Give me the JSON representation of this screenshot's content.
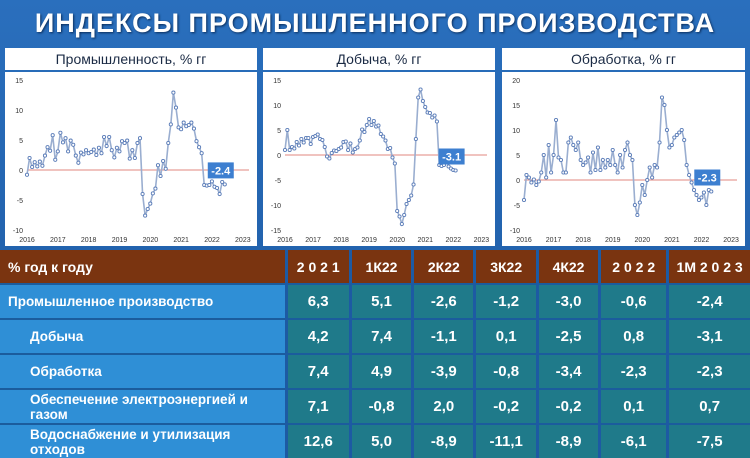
{
  "title": "ИНДЕКСЫ ПРОМЫШЛЕННОГО ПРОИЗВОДСТВА",
  "chart_data": [
    {
      "type": "line",
      "title": "Промышленность, % гг",
      "annotation": "-2.4",
      "ylim": [
        -10,
        15
      ],
      "yticks": [
        -10,
        -5,
        0,
        5,
        10,
        15
      ],
      "xticks": [
        "2016",
        "2017",
        "2018",
        "2019",
        "2020",
        "2021",
        "2022",
        "2023"
      ],
      "x_start": 2016.0,
      "x_step": 0.0833,
      "values": [
        -0.8,
        2.0,
        0.5,
        1.3,
        0.6,
        1.4,
        0.7,
        2.4,
        3.8,
        3.2,
        5.8,
        1.7,
        3.1,
        6.2,
        4.6,
        5.3,
        3.1,
        4.9,
        4.2,
        2.4,
        1.2,
        2.9,
        2.6,
        3.3,
        2.8,
        3.0,
        3.4,
        2.5,
        3.7,
        2.8,
        5.5,
        4.0,
        5.5,
        3.3,
        2.1,
        3.7,
        3.1,
        4.8,
        4.5,
        4.9,
        1.9,
        3.3,
        2.0,
        4.5,
        5.3,
        -4.0,
        -7.6,
        -6.5,
        -5.6,
        -3.9,
        -3.1,
        0.8,
        -1.0,
        1.5,
        0.2,
        4.5,
        7.6,
        12.9,
        10.4,
        7.1,
        6.8,
        7.9,
        7.3,
        7.5,
        7.9,
        6.9,
        4.8,
        3.8,
        2.8,
        -2.5,
        -2.6,
        -2.5,
        -1.9,
        -2.8,
        -3.0,
        -4.0,
        -2.0,
        -2.4
      ],
      "reference_line": 0
    },
    {
      "type": "line",
      "title": "Добыча, % гг",
      "annotation": "-3.1",
      "ylim": [
        -15,
        15
      ],
      "yticks": [
        -15,
        -10,
        -5,
        0,
        5,
        10,
        15
      ],
      "xticks": [
        "2016",
        "2017",
        "2018",
        "2019",
        "2020",
        "2021",
        "2022",
        "2023"
      ],
      "x_start": 2016.0,
      "x_step": 0.0833,
      "values": [
        1.0,
        5.0,
        1.0,
        1.6,
        1.3,
        2.6,
        1.9,
        3.2,
        2.5,
        3.4,
        3.4,
        2.2,
        3.6,
        3.8,
        4.1,
        3.2,
        3.0,
        1.6,
        -0.3,
        -0.7,
        0.4,
        0.9,
        0.8,
        1.2,
        1.5,
        2.6,
        2.7,
        1.0,
        2.3,
        0.5,
        1.2,
        1.5,
        2.9,
        5.1,
        4.6,
        6.0,
        7.2,
        6.0,
        6.8,
        5.7,
        5.9,
        4.2,
        3.7,
        2.9,
        1.2,
        1.4,
        -0.5,
        -1.7,
        -11.2,
        -12.3,
        -13.8,
        -12.0,
        -9.8,
        -9.0,
        -8.1,
        -5.9,
        3.2,
        11.5,
        13.1,
        10.8,
        9.6,
        8.5,
        8.4,
        7.5,
        7.9,
        6.7,
        -2.0,
        -2.2,
        -2.0,
        -0.7,
        -2.3,
        -2.7,
        -3.0,
        -3.1
      ],
      "reference_line": 0
    },
    {
      "type": "line",
      "title": "Обработка, % гг",
      "annotation": "-2.3",
      "ylim": [
        -10,
        20
      ],
      "yticks": [
        -10,
        -5,
        0,
        5,
        10,
        15,
        20
      ],
      "xticks": [
        "2016",
        "2017",
        "2018",
        "2019",
        "2020",
        "2021",
        "2022",
        "2023"
      ],
      "x_start": 2016.0,
      "x_step": 0.0833,
      "values": [
        -4.0,
        1.0,
        0.5,
        -0.5,
        0.1,
        -1.0,
        -0.3,
        1.5,
        5.0,
        0.5,
        7.0,
        1.5,
        5.0,
        12.0,
        4.5,
        4.0,
        1.5,
        1.5,
        7.5,
        8.5,
        7.0,
        6.0,
        7.5,
        4.0,
        3.0,
        3.5,
        4.5,
        1.5,
        5.5,
        2.0,
        6.5,
        2.0,
        4.0,
        2.5,
        4.0,
        3.0,
        6.0,
        3.0,
        1.5,
        5.0,
        2.5,
        6.0,
        7.5,
        5.0,
        4.0,
        -5.0,
        -7.0,
        -4.5,
        -1.0,
        -3.0,
        0.0,
        2.5,
        0.5,
        3.0,
        2.5,
        7.5,
        16.5,
        15.0,
        10.0,
        6.5,
        7.0,
        8.5,
        9.0,
        9.5,
        10.0,
        8.0,
        3.0,
        1.0,
        -0.5,
        -2.0,
        -3.0,
        -4.0,
        -3.5,
        -2.5,
        -5.0,
        -2.0,
        -2.3
      ],
      "reference_line": 0
    }
  ],
  "table": {
    "corner": "% год к году",
    "headers": [
      "2 0 2 1",
      "1К22",
      "2К22",
      "3К22",
      "4К22",
      "2 0 2 2",
      "1М 2 0 2 3"
    ],
    "rows": [
      {
        "label": "Промышленное производство",
        "sub": false,
        "values": [
          "6,3",
          "5,1",
          "-2,6",
          "-1,2",
          "-3,0",
          "-0,6",
          "-2,4"
        ]
      },
      {
        "label": "Добыча",
        "sub": true,
        "values": [
          "4,2",
          "7,4",
          "-1,1",
          "0,1",
          "-2,5",
          "0,8",
          "-3,1"
        ]
      },
      {
        "label": "Обработка",
        "sub": true,
        "values": [
          "7,4",
          "4,9",
          "-3,9",
          "-0,8",
          "-3,4",
          "-2,3",
          "-2,3"
        ]
      },
      {
        "label": "Обеспечение электроэнергией и газом",
        "sub": true,
        "values": [
          "7,1",
          "-0,8",
          "2,0",
          "-0,2",
          "-0,2",
          "0,1",
          "0,7"
        ]
      },
      {
        "label": "Водоснабжение и утилизация отходов",
        "sub": true,
        "values": [
          "12,6",
          "5,0",
          "-8,9",
          "-11,1",
          "-8,9",
          "-6,1",
          "-7,5"
        ]
      }
    ]
  },
  "colors": {
    "line": "#9aaed0",
    "marker": "#5a7cb8",
    "zero_line": "#e0877f",
    "annotation_bg": "#3d7fd0",
    "negative_value": "#f6ec32"
  }
}
